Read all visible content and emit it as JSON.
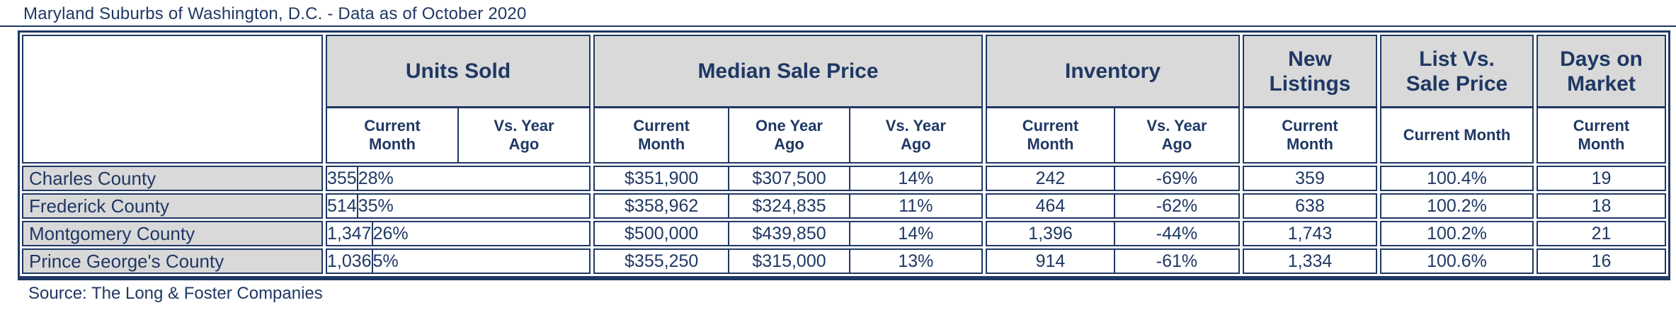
{
  "title": "Maryland Suburbs of Washington, D.C. - Data as of October 2020",
  "source": "Source: The Long & Foster Companies",
  "colors": {
    "navy": "#1f3864",
    "header_gray": "#d9d9d9",
    "background": "#ffffff"
  },
  "chart_data": {
    "type": "table",
    "title": "Maryland Suburbs of Washington, D.C. - Data as of October 2020",
    "source": "Source: The Long & Foster Companies",
    "column_groups": [
      {
        "label": "Units Sold",
        "sub": [
          "Current Month",
          "Vs. Year Ago"
        ]
      },
      {
        "label": "Median Sale Price",
        "sub": [
          "Current Month",
          "One Year Ago",
          "Vs. Year Ago"
        ]
      },
      {
        "label": "Inventory",
        "sub": [
          "Current Month",
          "Vs. Year Ago"
        ]
      },
      {
        "label": "New Listings",
        "sub": [
          "Current Month"
        ]
      },
      {
        "label": "List Vs. Sale Price",
        "sub": [
          "Current Month"
        ]
      },
      {
        "label": "Days on Market",
        "sub": [
          "Current Month"
        ]
      }
    ],
    "rows": [
      {
        "name": "Charles County",
        "values": [
          "355",
          "28%",
          "$351,900",
          "$307,500",
          "14%",
          "242",
          "-69%",
          "359",
          "100.4%",
          "19"
        ]
      },
      {
        "name": "Frederick County",
        "values": [
          "514",
          "35%",
          "$358,962",
          "$324,835",
          "11%",
          "464",
          "-62%",
          "638",
          "100.2%",
          "18"
        ]
      },
      {
        "name": "Montgomery County",
        "values": [
          "1,347",
          "26%",
          "$500,000",
          "$439,850",
          "14%",
          "1,396",
          "-44%",
          "1,743",
          "100.2%",
          "21"
        ]
      },
      {
        "name": "Prince George's County",
        "values": [
          "1,036",
          "5%",
          "$355,250",
          "$315,000",
          "13%",
          "914",
          "-61%",
          "1,334",
          "100.6%",
          "16"
        ]
      }
    ]
  }
}
